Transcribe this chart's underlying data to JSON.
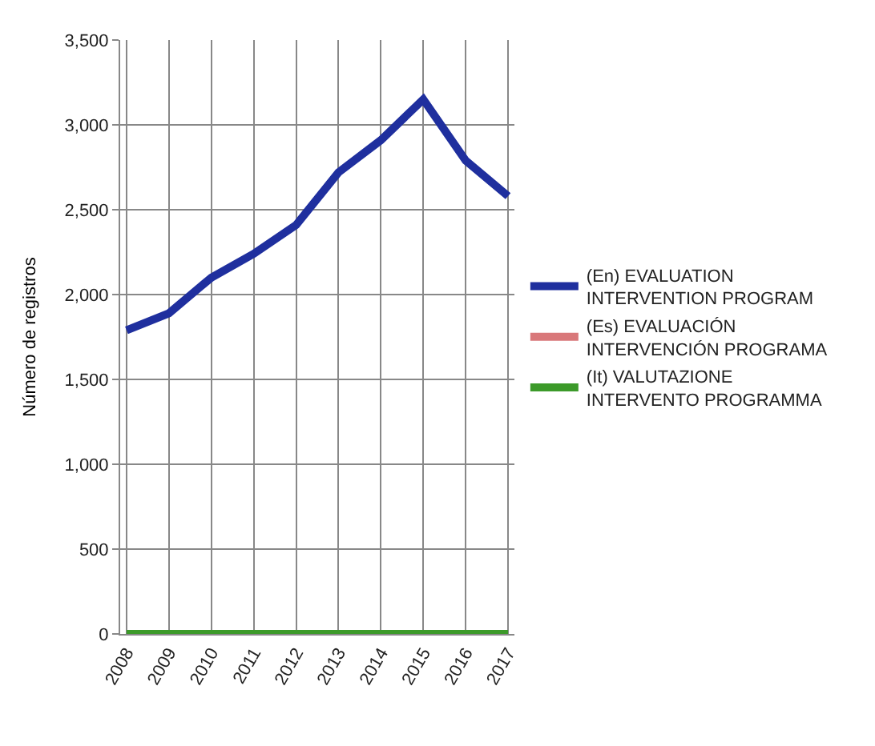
{
  "chart_data": {
    "type": "line",
    "ylabel": "Número de registros",
    "categories": [
      "2008",
      "2009",
      "2010",
      "2011",
      "2012",
      "2013",
      "2014",
      "2015",
      "2016",
      "2017"
    ],
    "series": [
      {
        "name": "(En) EVALUATION INTERVENTION PROGRAM",
        "color": "#1f2f9e",
        "values": [
          1790,
          1890,
          2100,
          2240,
          2410,
          2720,
          2910,
          3150,
          2790,
          2580
        ]
      },
      {
        "name": "(Es) EVALUACIÓN INTERVENCIÓN PROGRAMA",
        "color": "#d9787a",
        "values": [
          null,
          null,
          null,
          null,
          null,
          null,
          null,
          null,
          null,
          null
        ]
      },
      {
        "name": "(It) VALUTAZIONE INTERVENTO PROGRAMMA",
        "color": "#3c9a2a",
        "values": [
          0,
          0,
          0,
          0,
          0,
          0,
          0,
          0,
          0,
          0
        ]
      }
    ],
    "ylim": [
      0,
      3500
    ],
    "yticks": [
      {
        "value": 0,
        "label": "0"
      },
      {
        "value": 500,
        "label": "500"
      },
      {
        "value": 1000,
        "label": "1,000"
      },
      {
        "value": 1500,
        "label": "1,500"
      },
      {
        "value": 2000,
        "label": "2,000"
      },
      {
        "value": 2500,
        "label": "2,500"
      },
      {
        "value": 3000,
        "label": "3,000"
      },
      {
        "value": 3500,
        "label": "3,500"
      }
    ],
    "grid": true,
    "legend": "right",
    "marker": "none",
    "line_style": "solid"
  }
}
